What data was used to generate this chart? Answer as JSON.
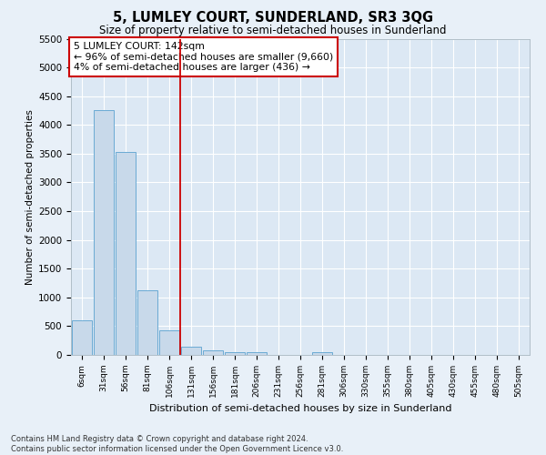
{
  "title": "5, LUMLEY COURT, SUNDERLAND, SR3 3QG",
  "subtitle": "Size of property relative to semi-detached houses in Sunderland",
  "xlabel": "Distribution of semi-detached houses by size in Sunderland",
  "ylabel": "Number of semi-detached properties",
  "bar_categories": [
    "6sqm",
    "31sqm",
    "56sqm",
    "81sqm",
    "106sqm",
    "131sqm",
    "156sqm",
    "181sqm",
    "206sqm",
    "231sqm",
    "256sqm",
    "281sqm",
    "306sqm",
    "330sqm",
    "355sqm",
    "380sqm",
    "405sqm",
    "430sqm",
    "455sqm",
    "480sqm",
    "505sqm"
  ],
  "bar_values": [
    600,
    4250,
    3530,
    1130,
    430,
    150,
    75,
    55,
    50,
    0,
    0,
    50,
    0,
    0,
    0,
    0,
    0,
    0,
    0,
    0,
    0
  ],
  "bar_color": "#c8d9ea",
  "bar_edge_color": "#6aaad4",
  "ylim": [
    0,
    5500
  ],
  "yticks": [
    0,
    500,
    1000,
    1500,
    2000,
    2500,
    3000,
    3500,
    4000,
    4500,
    5000,
    5500
  ],
  "vline_x": 4.52,
  "vline_color": "#cc0000",
  "annotation_text": "5 LUMLEY COURT: 142sqm\n← 96% of semi-detached houses are smaller (9,660)\n4% of semi-detached houses are larger (436) →",
  "annotation_box_color": "#ffffff",
  "annotation_box_edge": "#cc0000",
  "footnote": "Contains HM Land Registry data © Crown copyright and database right 2024.\nContains public sector information licensed under the Open Government Licence v3.0.",
  "bg_color": "#e8f0f8",
  "plot_bg": "#dce8f4",
  "grid_color": "#ffffff",
  "title_fontsize": 10.5,
  "subtitle_fontsize": 8.5
}
